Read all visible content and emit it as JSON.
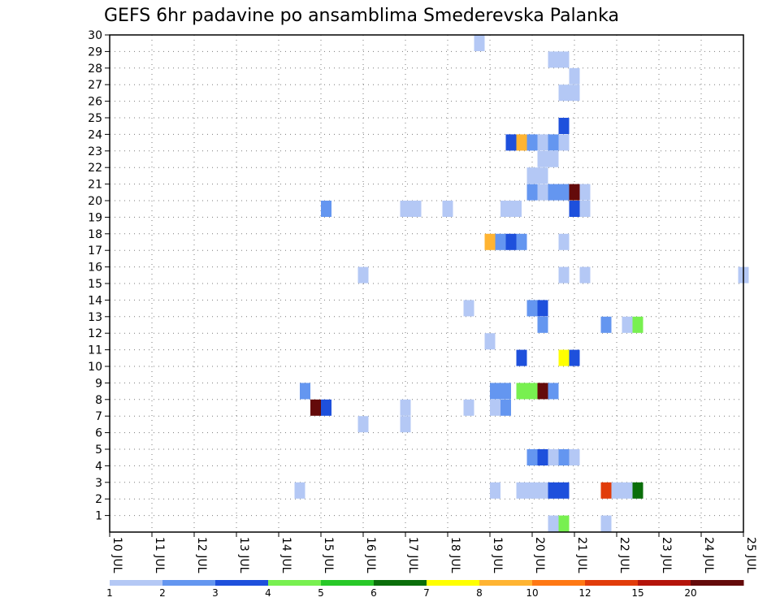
{
  "chart_data": {
    "type": "heatmap",
    "title": "GEFS 6hr padavine po ansamblima Smederevska Palanka",
    "x_ticks": [
      "10 JUL",
      "11 JUL",
      "12 JUL",
      "13 JUL",
      "14 JUL",
      "15 JUL",
      "16 JUL",
      "17 JUL",
      "18 JUL",
      "19 JUL",
      "20 JUL",
      "21 JUL",
      "22 JUL",
      "23 JUL",
      "24 JUL",
      "25 JUL"
    ],
    "y_ticks": [
      "1",
      "2",
      "3",
      "4",
      "5",
      "6",
      "7",
      "8",
      "9",
      "10",
      "11",
      "12",
      "13",
      "14",
      "15",
      "16",
      "17",
      "18",
      "19",
      "20",
      "21",
      "22",
      "23",
      "24",
      "25",
      "26",
      "27",
      "28",
      "29",
      "30"
    ],
    "ylim": [
      0,
      30
    ],
    "grid": true,
    "steps_per_day": 4,
    "legend": {
      "placement": "bottom",
      "labels": [
        "1",
        "2",
        "3",
        "4",
        "5",
        "6",
        "7",
        "8",
        "10",
        "12",
        "15",
        "20"
      ],
      "colors": [
        "#b4c8f5",
        "#6496f0",
        "#1e50dc",
        "#78f050",
        "#28c828",
        "#0a6e0a",
        "#ffff00",
        "#ffb432",
        "#ff7814",
        "#e13c0a",
        "#b4140a",
        "#640a0a"
      ]
    },
    "cells": [
      {
        "x": 34.5,
        "w": 1,
        "y": 30,
        "color": "#b4c8f5"
      },
      {
        "x": 41.5,
        "w": 2,
        "y": 29,
        "color": "#b4c8f5"
      },
      {
        "x": 43.5,
        "w": 1,
        "y": 28,
        "color": "#b4c8f5"
      },
      {
        "x": 42.5,
        "w": 2,
        "y": 27,
        "color": "#b4c8f5"
      },
      {
        "x": 42.5,
        "w": 1,
        "y": 25,
        "color": "#1e50dc"
      },
      {
        "x": 37.5,
        "w": 1,
        "y": 24,
        "color": "#1e50dc"
      },
      {
        "x": 38.5,
        "w": 1,
        "y": 24,
        "color": "#ffb432"
      },
      {
        "x": 39.5,
        "w": 1,
        "y": 24,
        "color": "#6496f0"
      },
      {
        "x": 40.5,
        "w": 1,
        "y": 24,
        "color": "#b4c8f5"
      },
      {
        "x": 41.5,
        "w": 1,
        "y": 24,
        "color": "#6496f0"
      },
      {
        "x": 42.5,
        "w": 1,
        "y": 24,
        "color": "#b4c8f5"
      },
      {
        "x": 40.5,
        "w": 2,
        "y": 23,
        "color": "#b4c8f5"
      },
      {
        "x": 39.5,
        "w": 2,
        "y": 22,
        "color": "#b4c8f5"
      },
      {
        "x": 39.5,
        "w": 1,
        "y": 21,
        "color": "#6496f0"
      },
      {
        "x": 40.5,
        "w": 1,
        "y": 21,
        "color": "#b4c8f5"
      },
      {
        "x": 41.5,
        "w": 1,
        "y": 21,
        "color": "#6496f0"
      },
      {
        "x": 42.5,
        "w": 1,
        "y": 21,
        "color": "#6496f0"
      },
      {
        "x": 43.5,
        "w": 1,
        "y": 21,
        "color": "#640a0a"
      },
      {
        "x": 44.5,
        "w": 1,
        "y": 21,
        "color": "#b4c8f5"
      },
      {
        "x": 20.0,
        "w": 1,
        "y": 20,
        "color": "#6496f0"
      },
      {
        "x": 27.5,
        "w": 2,
        "y": 20,
        "color": "#b4c8f5"
      },
      {
        "x": 31.5,
        "w": 1,
        "y": 20,
        "color": "#b4c8f5"
      },
      {
        "x": 37.0,
        "w": 2,
        "y": 20,
        "color": "#b4c8f5"
      },
      {
        "x": 43.5,
        "w": 1,
        "y": 20,
        "color": "#1e50dc"
      },
      {
        "x": 44.5,
        "w": 1,
        "y": 20,
        "color": "#b4c8f5"
      },
      {
        "x": 35.5,
        "w": 1,
        "y": 18,
        "color": "#ffb432"
      },
      {
        "x": 36.5,
        "w": 1,
        "y": 18,
        "color": "#6496f0"
      },
      {
        "x": 37.5,
        "w": 1,
        "y": 18,
        "color": "#1e50dc"
      },
      {
        "x": 38.5,
        "w": 1,
        "y": 18,
        "color": "#6496f0"
      },
      {
        "x": 42.5,
        "w": 1,
        "y": 18,
        "color": "#b4c8f5"
      },
      {
        "x": 23.5,
        "w": 1,
        "y": 16,
        "color": "#b4c8f5"
      },
      {
        "x": 42.5,
        "w": 1,
        "y": 16,
        "color": "#b4c8f5"
      },
      {
        "x": 44.5,
        "w": 1,
        "y": 16,
        "color": "#b4c8f5"
      },
      {
        "x": 59.5,
        "w": 1,
        "y": 16,
        "color": "#b4c8f5"
      },
      {
        "x": 33.5,
        "w": 1,
        "y": 14,
        "color": "#b4c8f5"
      },
      {
        "x": 39.5,
        "w": 1,
        "y": 14,
        "color": "#6496f0"
      },
      {
        "x": 40.5,
        "w": 1,
        "y": 14,
        "color": "#1e50dc"
      },
      {
        "x": 40.5,
        "w": 1,
        "y": 13,
        "color": "#6496f0"
      },
      {
        "x": 46.5,
        "w": 1,
        "y": 13,
        "color": "#6496f0"
      },
      {
        "x": 48.5,
        "w": 1,
        "y": 13,
        "color": "#b4c8f5"
      },
      {
        "x": 49.5,
        "w": 1,
        "y": 13,
        "color": "#78f050"
      },
      {
        "x": 35.5,
        "w": 1,
        "y": 12,
        "color": "#b4c8f5"
      },
      {
        "x": 38.5,
        "w": 1,
        "y": 11,
        "color": "#1e50dc"
      },
      {
        "x": 42.5,
        "w": 1,
        "y": 11,
        "color": "#ffff00"
      },
      {
        "x": 43.5,
        "w": 1,
        "y": 11,
        "color": "#1e50dc"
      },
      {
        "x": 18.0,
        "w": 1,
        "y": 9,
        "color": "#6496f0"
      },
      {
        "x": 36.0,
        "w": 2,
        "y": 9,
        "color": "#6496f0"
      },
      {
        "x": 38.5,
        "w": 1,
        "y": 9,
        "color": "#78f050"
      },
      {
        "x": 39.5,
        "w": 1,
        "y": 9,
        "color": "#78f050"
      },
      {
        "x": 40.5,
        "w": 1,
        "y": 9,
        "color": "#640a0a"
      },
      {
        "x": 41.5,
        "w": 1,
        "y": 9,
        "color": "#6496f0"
      },
      {
        "x": 19.0,
        "w": 1,
        "y": 8,
        "color": "#640a0a"
      },
      {
        "x": 20.0,
        "w": 1,
        "y": 8,
        "color": "#1e50dc"
      },
      {
        "x": 27.5,
        "w": 1,
        "y": 8,
        "color": "#b4c8f5"
      },
      {
        "x": 33.5,
        "w": 1,
        "y": 8,
        "color": "#b4c8f5"
      },
      {
        "x": 36.0,
        "w": 1,
        "y": 8,
        "color": "#b4c8f5"
      },
      {
        "x": 37.0,
        "w": 1,
        "y": 8,
        "color": "#6496f0"
      },
      {
        "x": 23.5,
        "w": 1,
        "y": 7,
        "color": "#b4c8f5"
      },
      {
        "x": 27.5,
        "w": 1,
        "y": 7,
        "color": "#b4c8f5"
      },
      {
        "x": 39.5,
        "w": 1,
        "y": 5,
        "color": "#6496f0"
      },
      {
        "x": 40.5,
        "w": 1,
        "y": 5,
        "color": "#1e50dc"
      },
      {
        "x": 41.5,
        "w": 1,
        "y": 5,
        "color": "#b4c8f5"
      },
      {
        "x": 42.5,
        "w": 1,
        "y": 5,
        "color": "#6496f0"
      },
      {
        "x": 43.5,
        "w": 1,
        "y": 5,
        "color": "#b4c8f5"
      },
      {
        "x": 17.5,
        "w": 1,
        "y": 3,
        "color": "#b4c8f5"
      },
      {
        "x": 36.0,
        "w": 1,
        "y": 3,
        "color": "#b4c8f5"
      },
      {
        "x": 38.5,
        "w": 3,
        "y": 3,
        "color": "#b4c8f5"
      },
      {
        "x": 41.5,
        "w": 1,
        "y": 3,
        "color": "#1e50dc"
      },
      {
        "x": 42.5,
        "w": 1,
        "y": 3,
        "color": "#1e50dc"
      },
      {
        "x": 46.5,
        "w": 1,
        "y": 3,
        "color": "#e13c0a"
      },
      {
        "x": 47.5,
        "w": 2,
        "y": 3,
        "color": "#b4c8f5"
      },
      {
        "x": 49.5,
        "w": 1,
        "y": 3,
        "color": "#0a6e0a"
      },
      {
        "x": 41.5,
        "w": 1,
        "y": 1,
        "color": "#b4c8f5"
      },
      {
        "x": 42.5,
        "w": 1,
        "y": 1,
        "color": "#78f050"
      },
      {
        "x": 46.5,
        "w": 1,
        "y": 1,
        "color": "#b4c8f5"
      }
    ]
  }
}
